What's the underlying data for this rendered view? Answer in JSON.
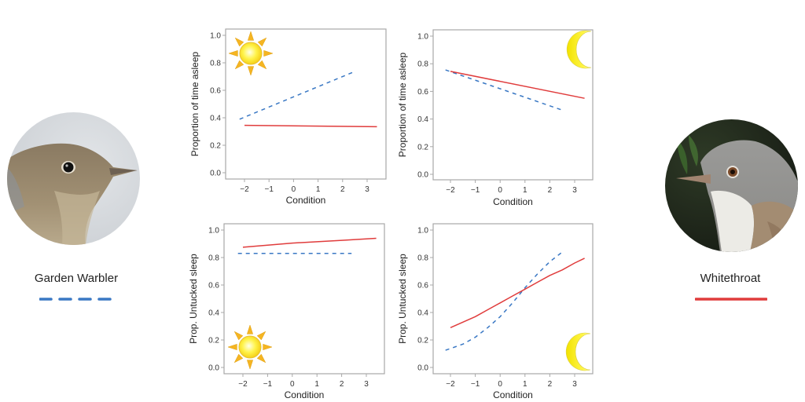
{
  "legend": [
    {
      "name": "Garden Warbler",
      "style": "dashed",
      "color": "#3a78c4"
    },
    {
      "name": "Whitethroat",
      "style": "solid",
      "color": "#e03c3c"
    }
  ],
  "chart_data": [
    {
      "type": "line",
      "panel": "top-left",
      "condition_icon": "sun",
      "title": "",
      "xlabel": "Condition",
      "ylabel": "Proportion of time asleep",
      "xlim": [
        -2.6,
        3.7
      ],
      "ylim": [
        0.0,
        1.0
      ],
      "xticks": [
        -2,
        -1,
        0,
        1,
        2,
        3
      ],
      "xtick_labels": [
        "−2",
        "−1",
        "0",
        "1",
        "2",
        "3"
      ],
      "yticks": [
        0.0,
        0.2,
        0.4,
        0.6,
        0.8,
        1.0
      ],
      "ytick_labels": [
        "0.0",
        "0.2",
        "0.4",
        "0.6",
        "0.8",
        "1.0"
      ],
      "grid": false,
      "series": [
        {
          "name": "Garden Warbler",
          "style": "dashed",
          "x": [
            -2.2,
            2.4
          ],
          "y": [
            0.39,
            0.73
          ]
        },
        {
          "name": "Whitethroat",
          "style": "solid",
          "x": [
            -2.0,
            3.4
          ],
          "y": [
            0.345,
            0.335
          ]
        }
      ]
    },
    {
      "type": "line",
      "panel": "top-right",
      "condition_icon": "moon",
      "title": "",
      "xlabel": "Condition",
      "ylabel": "Proportion of time asleep",
      "xlim": [
        -2.6,
        3.7
      ],
      "ylim": [
        0.0,
        1.0
      ],
      "xticks": [
        -2,
        -1,
        0,
        1,
        2,
        3
      ],
      "xtick_labels": [
        "−2",
        "−1",
        "0",
        "1",
        "2",
        "3"
      ],
      "yticks": [
        0.0,
        0.2,
        0.4,
        0.6,
        0.8,
        1.0
      ],
      "ytick_labels": [
        "0.0",
        "0.2",
        "0.4",
        "0.6",
        "0.8",
        "1.0"
      ],
      "grid": false,
      "series": [
        {
          "name": "Garden Warbler",
          "style": "dashed",
          "x": [
            -2.2,
            2.5
          ],
          "y": [
            0.755,
            0.465
          ]
        },
        {
          "name": "Whitethroat",
          "style": "solid",
          "x": [
            -2.0,
            3.4
          ],
          "y": [
            0.745,
            0.55
          ]
        }
      ]
    },
    {
      "type": "line",
      "panel": "bottom-left",
      "condition_icon": "sun",
      "title": "",
      "xlabel": "Condition",
      "ylabel": "Prop. Untucked sleep",
      "xlim": [
        -2.6,
        3.7
      ],
      "ylim": [
        0.0,
        1.0
      ],
      "xticks": [
        -2,
        -1,
        0,
        1,
        2,
        3
      ],
      "xtick_labels": [
        "−2",
        "−1",
        "0",
        "1",
        "2",
        "3"
      ],
      "yticks": [
        0.0,
        0.2,
        0.4,
        0.6,
        0.8,
        1.0
      ],
      "ytick_labels": [
        "0.0",
        "0.2",
        "0.4",
        "0.6",
        "0.8",
        "1.0"
      ],
      "grid": false,
      "series": [
        {
          "name": "Garden Warbler",
          "style": "dashed",
          "x": [
            -2.2,
            2.4
          ],
          "y": [
            0.83,
            0.83
          ]
        },
        {
          "name": "Whitethroat",
          "style": "solid",
          "x": [
            -2.0,
            -1.0,
            0.0,
            1.0,
            2.0,
            3.4
          ],
          "y": [
            0.875,
            0.89,
            0.905,
            0.915,
            0.925,
            0.94
          ]
        }
      ]
    },
    {
      "type": "line",
      "panel": "bottom-right",
      "condition_icon": "moon",
      "title": "",
      "xlabel": "Condition",
      "ylabel": "Prop. Untucked sleep",
      "xlim": [
        -2.6,
        3.7
      ],
      "ylim": [
        0.0,
        1.0
      ],
      "xticks": [
        -2,
        -1,
        0,
        1,
        2,
        3
      ],
      "xtick_labels": [
        "−2",
        "−1",
        "0",
        "1",
        "2",
        "3"
      ],
      "yticks": [
        0.0,
        0.2,
        0.4,
        0.6,
        0.8,
        1.0
      ],
      "ytick_labels": [
        "0.0",
        "0.2",
        "0.4",
        "0.6",
        "0.8",
        "1.0"
      ],
      "grid": false,
      "series": [
        {
          "name": "Garden Warbler",
          "style": "dashed",
          "x": [
            -2.2,
            -1.5,
            -1.0,
            -0.5,
            0.0,
            0.5,
            1.0,
            1.5,
            2.0,
            2.5
          ],
          "y": [
            0.125,
            0.17,
            0.22,
            0.29,
            0.37,
            0.47,
            0.58,
            0.68,
            0.77,
            0.84
          ]
        },
        {
          "name": "Whitethroat",
          "style": "solid",
          "x": [
            -2.0,
            -1.5,
            -1.0,
            -0.5,
            0.0,
            0.5,
            1.0,
            1.5,
            2.0,
            2.5,
            3.0,
            3.4
          ],
          "y": [
            0.29,
            0.33,
            0.37,
            0.42,
            0.47,
            0.52,
            0.57,
            0.62,
            0.67,
            0.71,
            0.76,
            0.795
          ]
        }
      ]
    }
  ]
}
